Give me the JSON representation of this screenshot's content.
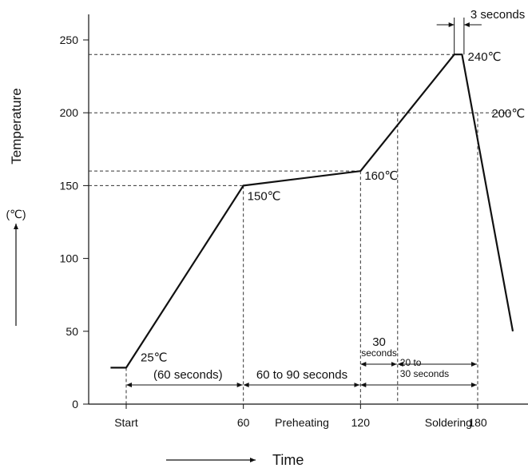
{
  "chart_data": {
    "type": "line",
    "title": "",
    "xlabel": "Time",
    "ylabel": "Temperature",
    "yunit": "(℃)",
    "ylim": [
      0,
      265
    ],
    "xlim": [
      -8,
      197
    ],
    "yticks": [
      0,
      50,
      100,
      150,
      200,
      250
    ],
    "x_tick_labels": [
      {
        "x": 0,
        "label": "Start"
      },
      {
        "x": 60,
        "label": "60"
      },
      {
        "x": 90,
        "label": "Preheating"
      },
      {
        "x": 120,
        "label": "120"
      },
      {
        "x": 165,
        "label": "Soldering"
      },
      {
        "x": 180,
        "label": "180"
      }
    ],
    "series": [
      {
        "x": [
          -8,
          0,
          60,
          120,
          168,
          172,
          198
        ],
        "y": [
          25,
          25,
          150,
          160,
          240,
          240,
          50
        ]
      }
    ],
    "point_labels": [
      {
        "x": 0,
        "y": 25,
        "label": "25℃"
      },
      {
        "x": 60,
        "y": 150,
        "label": "150℃"
      },
      {
        "x": 120,
        "y": 160,
        "label": "160℃"
      },
      {
        "x": 170,
        "y": 240,
        "label": "240℃"
      },
      {
        "x": 183,
        "y": 200,
        "label": "200℃"
      }
    ],
    "reference_lines": [
      {
        "y": 150,
        "x_from": -8,
        "x_to": 60
      },
      {
        "y": 160,
        "x_from": -8,
        "x_to": 120
      },
      {
        "y": 200,
        "x_from": -8,
        "x_to": 197
      },
      {
        "y": 240,
        "x_from": -8,
        "x_to": 168
      }
    ],
    "vertical_guides": [
      {
        "x": 60,
        "y_to": 150
      },
      {
        "x": 120,
        "y_to": 160
      },
      {
        "x": 139,
        "y_to": 200
      },
      {
        "x": 180,
        "y_to": 200
      }
    ],
    "spans": [
      {
        "label": "(60 seconds)",
        "from": 0,
        "to": 60,
        "y": 8
      },
      {
        "label": "60 to 90 seconds",
        "from": 60,
        "to": 120,
        "y": 8
      },
      {
        "label": "",
        "from": 120,
        "to": 180,
        "y": 8
      },
      {
        "label": "30 seconds",
        "line1": "30",
        "line2": "seconds",
        "from": 120,
        "to": 139,
        "y": 20
      },
      {
        "label": "20 to 30 seconds",
        "line1": "20 to",
        "line2": "30 seconds",
        "from": 139,
        "to": 180,
        "y": 20
      },
      {
        "label": "3 seconds",
        "from": 168,
        "to": 173,
        "y": 262
      }
    ],
    "grid": false,
    "legend": "none"
  }
}
